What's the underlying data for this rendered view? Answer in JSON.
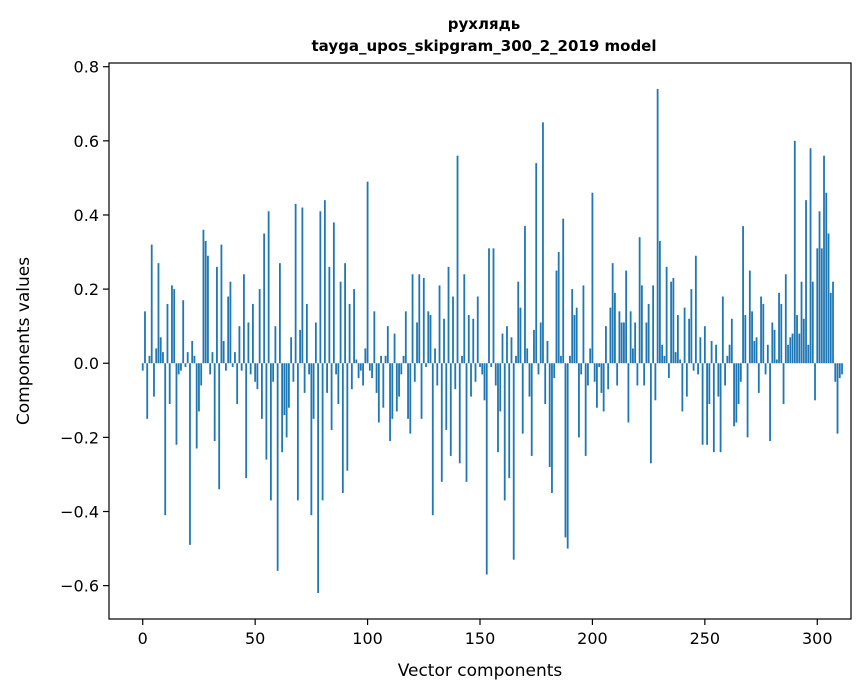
{
  "chart_data": {
    "type": "bar",
    "title_line1": "рухлядь",
    "title_line2": "tayga_upos_skipgram_300_2_2019 model",
    "xlabel": "Vector components",
    "ylabel": "Components values",
    "xlim": [
      -15,
      315
    ],
    "ylim": [
      -0.69,
      0.81
    ],
    "xticks": [
      0,
      50,
      100,
      150,
      200,
      250,
      300
    ],
    "yticks": [
      -0.6,
      -0.4,
      -0.2,
      0.0,
      0.2,
      0.4,
      0.6,
      0.8
    ],
    "ytick_labels": [
      "−0.6",
      "−0.4",
      "−0.2",
      "0.0",
      "0.2",
      "0.4",
      "0.6",
      "0.8"
    ],
    "bar_color": "#1f77b4",
    "grid": false,
    "values": [
      -0.02,
      0.14,
      -0.15,
      0.02,
      0.32,
      -0.09,
      0.04,
      0.27,
      0.07,
      0.03,
      -0.41,
      0.16,
      -0.11,
      0.21,
      0.2,
      -0.22,
      -0.03,
      -0.02,
      0.17,
      -0.01,
      0.03,
      -0.49,
      0.06,
      0.02,
      -0.23,
      -0.13,
      -0.06,
      0.36,
      0.33,
      0.29,
      -0.03,
      0.03,
      -0.21,
      0.26,
      -0.34,
      0.32,
      0.06,
      -0.02,
      0.18,
      0.22,
      -0.01,
      0.03,
      -0.11,
      0.1,
      -0.02,
      0.24,
      -0.31,
      0.11,
      -0.03,
      0.16,
      -0.05,
      -0.07,
      0.2,
      -0.15,
      0.35,
      -0.26,
      0.41,
      -0.37,
      -0.05,
      0.1,
      -0.56,
      0.27,
      -0.24,
      -0.14,
      -0.2,
      -0.12,
      0.07,
      -0.05,
      0.43,
      -0.37,
      0.09,
      0.42,
      -0.08,
      0.16,
      -0.03,
      -0.41,
      -0.15,
      0.11,
      -0.62,
      0.41,
      -0.37,
      0.44,
      -0.08,
      0.26,
      -0.18,
      0.38,
      -0.03,
      -0.11,
      0.22,
      -0.35,
      0.27,
      -0.29,
      0.16,
      -0.07,
      0.2,
      0.01,
      -0.04,
      -0.02,
      -0.06,
      0.04,
      0.49,
      -0.02,
      -0.04,
      0.14,
      -0.08,
      -0.16,
      0.02,
      -0.12,
      0.02,
      0.1,
      -0.21,
      -0.15,
      0.08,
      -0.13,
      -0.09,
      -0.03,
      0.02,
      0.14,
      -0.15,
      -0.19,
      0.24,
      -0.05,
      0.11,
      0.24,
      -0.15,
      0.23,
      -0.01,
      0.14,
      0.13,
      -0.41,
      0.04,
      -0.06,
      0.21,
      -0.32,
      0.12,
      -0.18,
      0.26,
      -0.25,
      0.18,
      -0.07,
      0.56,
      -0.27,
      0.02,
      0.24,
      -0.32,
      0.13,
      -0.09,
      0.12,
      -0.05,
      0.18,
      -0.01,
      -0.03,
      -0.1,
      -0.57,
      0.31,
      -0.01,
      0.31,
      -0.06,
      -0.24,
      -0.13,
      0.08,
      -0.37,
      0.1,
      -0.31,
      0.07,
      -0.53,
      0.02,
      0.22,
      0.15,
      -0.19,
      0.37,
      0.04,
      -0.09,
      -0.25,
      0.09,
      0.54,
      -0.03,
      0.11,
      0.65,
      -0.11,
      0.06,
      -0.28,
      -0.35,
      -0.04,
      0.25,
      0.3,
      0.02,
      0.39,
      -0.47,
      -0.5,
      0.02,
      0.2,
      0.13,
      0.15,
      -0.2,
      -0.03,
      0.21,
      -0.25,
      -0.06,
      0.04,
      0.46,
      -0.05,
      -0.12,
      -0.01,
      -0.08,
      -0.13,
      0.1,
      -0.07,
      0.15,
      0.27,
      0.19,
      -0.06,
      0.14,
      0.11,
      0.11,
      0.25,
      -0.16,
      0.14,
      0.04,
      0.11,
      -0.06,
      0.34,
      0.21,
      -0.06,
      0.11,
      0.16,
      -0.27,
      0.21,
      -0.1,
      0.74,
      0.33,
      0.05,
      0.02,
      0.26,
      -0.04,
      0.22,
      0.23,
      0.03,
      0.13,
      0.01,
      -0.13,
      0.15,
      -0.09,
      0.12,
      0.2,
      -0.02,
      0.29,
      -0.03,
      0.07,
      -0.22,
      0.1,
      -0.22,
      -0.11,
      0.06,
      -0.24,
      0.05,
      -0.09,
      -0.24,
      0.18,
      -0.06,
      0.02,
      0.05,
      0.12,
      -0.17,
      -0.16,
      -0.11,
      -0.05,
      0.37,
      0.13,
      -0.2,
      0.25,
      0.14,
      0.06,
      0.07,
      -0.08,
      0.18,
      0.16,
      -0.03,
      0.05,
      -0.21,
      0.11,
      0.09,
      0.01,
      0.19,
      0.16,
      -0.11,
      0.24,
      0.05,
      0.07,
      0.08,
      0.6,
      0.13,
      0.08,
      0.22,
      0.12,
      0.44,
      0.05,
      0.58,
      0.22,
      -0.1,
      0.31,
      0.41,
      0.31,
      0.56,
      0.46,
      0.35,
      0.19,
      0.22,
      -0.05,
      -0.19,
      -0.04,
      -0.03
    ]
  }
}
